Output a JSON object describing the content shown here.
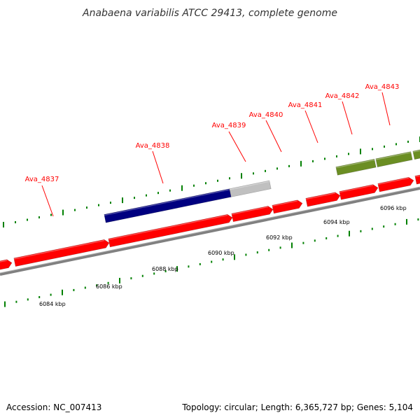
{
  "title": "Anabaena variabilis ATCC 29413, complete genome",
  "footer": {
    "accession": "Accession: NC_007413",
    "stats": "Topology: circular; Length: 6,365,727 bp; Genes: 5,104"
  },
  "colors": {
    "forward_gene": "#ff0000",
    "reverse_gene_dark": "#000080",
    "reverse_gene_gray": "#c0c0c0",
    "reverse_gene_olive": "#6b8e23",
    "tick": "#008000",
    "backbone": "#808080",
    "label": "#ff0000",
    "leader_line": "#ff0000"
  },
  "genes": [
    {
      "id": "Ava_4837",
      "label": "Ava_4837"
    },
    {
      "id": "Ava_4838",
      "label": "Ava_4838"
    },
    {
      "id": "Ava_4839",
      "label": "Ava_4839"
    },
    {
      "id": "Ava_4840",
      "label": "Ava_4840"
    },
    {
      "id": "Ava_4841",
      "label": "Ava_4841"
    },
    {
      "id": "Ava_4842",
      "label": "Ava_4842"
    },
    {
      "id": "Ava_4843",
      "label": "Ava_4843"
    }
  ],
  "scale_labels": [
    "6084 kbp",
    "6086 kbp",
    "6088 kbp",
    "6090 kbp",
    "6092 kbp",
    "6094 kbp",
    "6096 kbp"
  ]
}
